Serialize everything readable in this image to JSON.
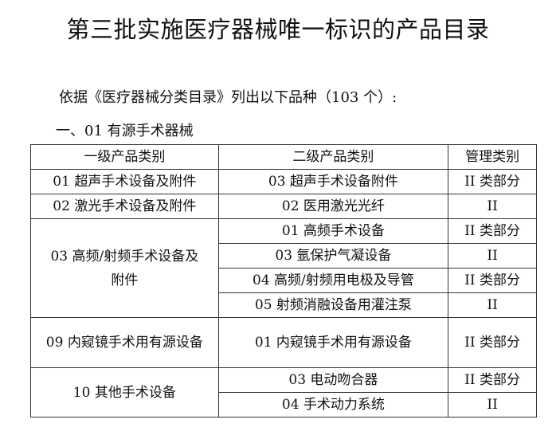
{
  "title": "第三批实施医疗器械唯一标识的产品目录",
  "subtitle": "依据《医疗器械分类目录》列出以下品种（103 个）:",
  "section": "一、01 有源手术器械",
  "table": {
    "headers": [
      "一级产品类别",
      "二级产品类别",
      "管理类别"
    ],
    "groups": [
      {
        "level1": "01 超声手术设备及附件",
        "items": [
          {
            "level2": "03 超声手术设备附件",
            "mgmt": "II 类部分"
          }
        ]
      },
      {
        "level1": "02 激光手术设备及附件",
        "items": [
          {
            "level2": "02 医用激光光纤",
            "mgmt": "II"
          }
        ]
      },
      {
        "level1": "03 高频/射频手术设备及附件",
        "items": [
          {
            "level2": "01 高频手术设备",
            "mgmt": "II 类部分"
          },
          {
            "level2": "03 氩保护气凝设备",
            "mgmt": "II"
          },
          {
            "level2": "04 高频/射频用电极及导管",
            "mgmt": "II 类部分"
          },
          {
            "level2": "05 射频消融设备用灌注泵",
            "mgmt": "II"
          }
        ]
      },
      {
        "level1": "09 内窥镜手术用有源设备",
        "items": [
          {
            "level2": "01 内窥镜手术用有源设备",
            "mgmt": "II 类部分"
          }
        ]
      },
      {
        "level1": "10 其他手术设备",
        "items": [
          {
            "level2": "03 电动吻合器",
            "mgmt": "II 类部分"
          },
          {
            "level2": "04 手术动力系统",
            "mgmt": "II"
          }
        ]
      }
    ]
  }
}
